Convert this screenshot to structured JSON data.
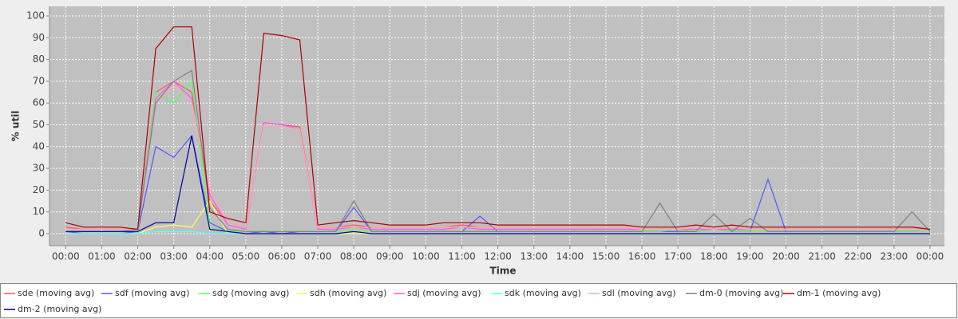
{
  "chart_data": {
    "type": "line",
    "ylabel": "% util",
    "xlabel": "Time",
    "x": [
      0,
      0.5,
      1,
      1.5,
      2,
      2.5,
      3,
      3.5,
      4,
      4.5,
      5,
      5.5,
      6,
      6.5,
      7,
      7.5,
      8,
      8.5,
      9,
      9.5,
      10,
      10.5,
      11,
      11.5,
      12,
      12.5,
      13,
      13.5,
      14,
      14.5,
      15,
      15.5,
      16,
      16.5,
      17,
      17.5,
      18,
      18.5,
      19,
      19.5,
      20,
      20.5,
      21,
      21.5,
      22,
      22.5,
      23,
      23.5,
      24
    ],
    "xlim": [
      -0.45,
      24.4
    ],
    "xticks": [
      {
        "value": 0,
        "label": "00:00"
      },
      {
        "value": 1,
        "label": "01:00"
      },
      {
        "value": 2,
        "label": "02:00"
      },
      {
        "value": 3,
        "label": "03:00"
      },
      {
        "value": 4,
        "label": "04:00"
      },
      {
        "value": 5,
        "label": "05:00"
      },
      {
        "value": 6,
        "label": "06:00"
      },
      {
        "value": 7,
        "label": "07:00"
      },
      {
        "value": 8,
        "label": "08:00"
      },
      {
        "value": 9,
        "label": "09:00"
      },
      {
        "value": 10,
        "label": "10:00"
      },
      {
        "value": 11,
        "label": "11:00"
      },
      {
        "value": 12,
        "label": "12:00"
      },
      {
        "value": 13,
        "label": "13:00"
      },
      {
        "value": 14,
        "label": "14:00"
      },
      {
        "value": 15,
        "label": "15:00"
      },
      {
        "value": 16,
        "label": "16:00"
      },
      {
        "value": 17,
        "label": "17:00"
      },
      {
        "value": 18,
        "label": "18:00"
      },
      {
        "value": 19,
        "label": "19:00"
      },
      {
        "value": 20,
        "label": "20:00"
      },
      {
        "value": 21,
        "label": "21:00"
      },
      {
        "value": 22,
        "label": "22:00"
      },
      {
        "value": 23,
        "label": "23:00"
      },
      {
        "value": 24,
        "label": "00:00"
      }
    ],
    "ylim": [
      -5.5,
      104.4
    ],
    "yticks": [
      0,
      10,
      20,
      30,
      40,
      50,
      60,
      70,
      80,
      90,
      100
    ],
    "grid": true,
    "series": [
      {
        "name": "sde (moving avg)",
        "color": "#ff5555",
        "values": [
          3,
          2,
          2,
          2,
          2,
          65,
          70,
          65,
          15,
          5,
          3,
          51,
          50,
          49,
          3,
          3,
          4,
          3,
          3,
          3,
          3,
          3,
          4,
          3,
          3,
          3,
          3,
          3,
          3,
          3,
          3,
          3,
          2,
          2,
          2,
          3,
          2,
          3,
          2,
          2,
          2,
          2,
          2,
          2,
          2,
          2,
          2,
          2,
          2
        ]
      },
      {
        "name": "sdf (moving avg)",
        "color": "#5555ff",
        "values": [
          1,
          0,
          0,
          0,
          1,
          40,
          35,
          45,
          5,
          1,
          0,
          1,
          0,
          1,
          1,
          1,
          12,
          1,
          1,
          1,
          1,
          1,
          1,
          8,
          1,
          1,
          1,
          1,
          1,
          1,
          1,
          1,
          1,
          1,
          1,
          1,
          2,
          1,
          1,
          25,
          1,
          1,
          1,
          1,
          1,
          1,
          1,
          1,
          2
        ]
      },
      {
        "name": "sdg (moving avg)",
        "color": "#55ff55",
        "values": [
          1,
          1,
          1,
          1,
          1,
          65,
          60,
          70,
          3,
          1,
          1,
          1,
          1,
          1,
          1,
          1,
          2,
          1,
          1,
          1,
          1,
          1,
          1,
          1,
          1,
          1,
          1,
          1,
          1,
          1,
          1,
          1,
          1,
          1,
          2,
          1,
          2,
          1,
          1,
          1,
          1,
          1,
          1,
          1,
          1,
          1,
          1,
          1,
          2
        ]
      },
      {
        "name": "sdh (moving avg)",
        "color": "#ffff55",
        "values": [
          0,
          0,
          0,
          0,
          0,
          3,
          4,
          3,
          15,
          0,
          0,
          0,
          0,
          0,
          0,
          0,
          0,
          0,
          0,
          0,
          0,
          0,
          0,
          0,
          0,
          0,
          0,
          0,
          0,
          0,
          0,
          0,
          0,
          0,
          0,
          0,
          0,
          0,
          0,
          0,
          0,
          0,
          0,
          0,
          0,
          0,
          0,
          0,
          0
        ]
      },
      {
        "name": "sdj (moving avg)",
        "color": "#ff55ff",
        "values": [
          2,
          2,
          2,
          2,
          2,
          62,
          70,
          62,
          18,
          4,
          2,
          51,
          50,
          48,
          2,
          2,
          3,
          2,
          2,
          2,
          2,
          2,
          3,
          2,
          2,
          2,
          2,
          2,
          2,
          2,
          2,
          2,
          2,
          2,
          2,
          2,
          2,
          2,
          2,
          2,
          2,
          2,
          2,
          2,
          2,
          2,
          2,
          2,
          2
        ]
      },
      {
        "name": "sdk (moving avg)",
        "color": "#55ffff",
        "values": [
          0,
          0,
          0,
          0,
          0,
          1,
          1,
          1,
          0,
          0,
          0,
          0,
          0,
          0,
          0,
          0,
          1,
          0,
          0,
          0,
          0,
          0,
          0,
          0,
          0,
          0,
          0,
          0,
          0,
          0,
          0,
          0,
          0,
          0,
          0,
          0,
          0,
          0,
          0,
          0,
          0,
          0,
          0,
          0,
          0,
          0,
          0,
          0,
          0
        ]
      },
      {
        "name": "sdl (moving avg)",
        "color": "#ffaaaa",
        "values": [
          2,
          2,
          2,
          2,
          2,
          60,
          68,
          60,
          20,
          5,
          3,
          50,
          49,
          48,
          3,
          3,
          3,
          3,
          3,
          3,
          3,
          3,
          3,
          3,
          3,
          3,
          3,
          3,
          3,
          3,
          3,
          3,
          2,
          2,
          2,
          3,
          2,
          3,
          2,
          2,
          2,
          2,
          2,
          2,
          2,
          2,
          2,
          2,
          2
        ]
      },
      {
        "name": "dm-0 (moving avg)",
        "color": "#808080",
        "values": [
          1,
          1,
          1,
          1,
          2,
          60,
          70,
          75,
          12,
          2,
          1,
          1,
          1,
          1,
          1,
          1,
          15,
          1,
          1,
          1,
          1,
          1,
          1,
          1,
          1,
          1,
          1,
          1,
          1,
          1,
          1,
          1,
          1,
          14,
          1,
          1,
          9,
          1,
          7,
          1,
          1,
          1,
          1,
          1,
          1,
          1,
          1,
          10,
          1
        ]
      },
      {
        "name": "dm-1 (moving avg)",
        "color": "#aa0000",
        "values": [
          5,
          3,
          3,
          3,
          2,
          85,
          95,
          95,
          10,
          7,
          5,
          92,
          91,
          89,
          4,
          5,
          6,
          5,
          4,
          4,
          4,
          5,
          5,
          5,
          4,
          4,
          4,
          4,
          4,
          4,
          4,
          4,
          3,
          3,
          3,
          4,
          3,
          4,
          3,
          3,
          3,
          3,
          3,
          3,
          3,
          3,
          3,
          3,
          2
        ]
      },
      {
        "name": "dm-2 (moving avg)",
        "color": "#000099",
        "values": [
          1,
          1,
          1,
          1,
          1,
          5,
          5,
          45,
          2,
          1,
          0,
          0,
          0,
          0,
          0,
          0,
          1,
          0,
          0,
          0,
          0,
          0,
          0,
          0,
          0,
          0,
          0,
          0,
          0,
          0,
          0,
          0,
          0,
          0,
          0,
          0,
          0,
          0,
          0,
          0,
          0,
          0,
          0,
          0,
          0,
          0,
          0,
          0,
          0
        ]
      }
    ]
  }
}
